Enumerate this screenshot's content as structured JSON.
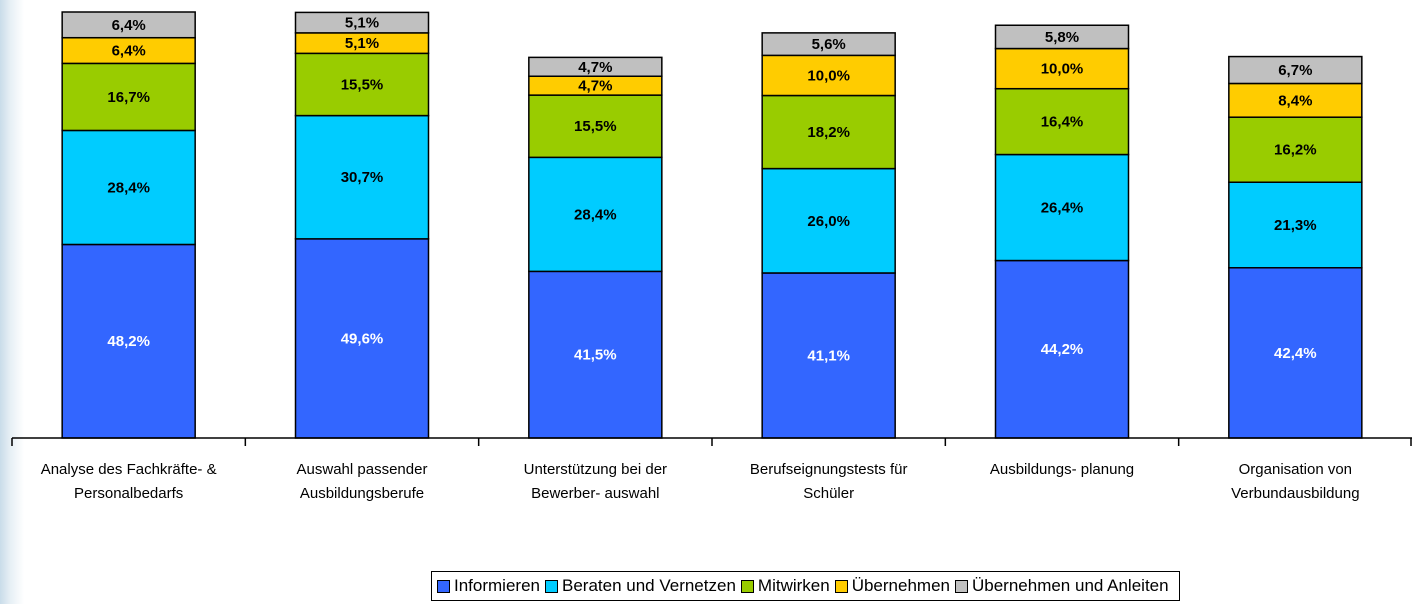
{
  "chart_data": {
    "type": "stacked_bar",
    "categories": [
      "Analyse des Fachkräfte- & Personalbedarfs",
      "Auswahl passender Ausbildungsberufe",
      "Unterstützung bei der Bewerber- auswahl",
      "Berufseignungstests für Schüler",
      "Ausbildungs- planung",
      "Organisation von Verbundausbildung"
    ],
    "series": [
      {
        "name": "Informieren",
        "color": "#3366ff",
        "values": [
          48.2,
          49.6,
          41.5,
          41.1,
          44.2,
          42.4
        ],
        "value_labels": [
          "48,2%",
          "49,6%",
          "41,5%",
          "41,1%",
          "44,2%",
          "42,4%"
        ]
      },
      {
        "name": "Beraten und Vernetzen",
        "color": "#00ccff",
        "values": [
          28.4,
          30.7,
          28.4,
          26.0,
          26.4,
          21.3
        ],
        "value_labels": [
          "28,4%",
          "30,7%",
          "28,4%",
          "26,0%",
          "26,4%",
          "21,3%"
        ]
      },
      {
        "name": "Mitwirken",
        "color": "#99cc00",
        "values": [
          16.7,
          15.5,
          15.5,
          18.2,
          16.4,
          16.2
        ],
        "value_labels": [
          "16,7%",
          "15,5%",
          "15,5%",
          "18,2%",
          "16,4%",
          "16,2%"
        ]
      },
      {
        "name": "Übernehmen",
        "color": "#ffcc00",
        "values": [
          6.4,
          5.1,
          4.7,
          10.0,
          10.0,
          8.4
        ],
        "value_labels": [
          "6,4%",
          "5,1%",
          "4,7%",
          "10,0%",
          "10,0%",
          "8,4%"
        ]
      },
      {
        "name": "Übernehmen und Anleiten",
        "color": "#c0c0c0",
        "values": [
          6.4,
          5.1,
          4.7,
          5.6,
          5.8,
          6.7
        ],
        "value_labels": [
          "6,4%",
          "5,1%",
          "4,7%",
          "5,6%",
          "5,8%",
          "6,7%"
        ]
      }
    ]
  }
}
